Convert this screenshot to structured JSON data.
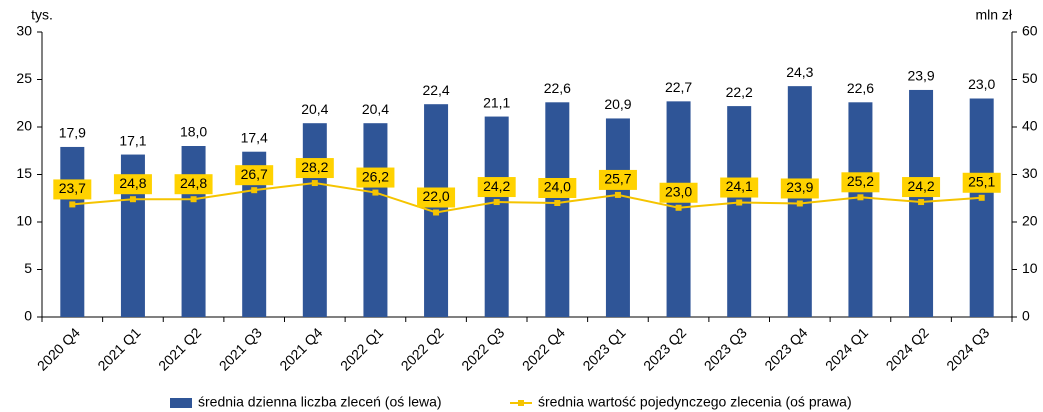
{
  "chart_data": {
    "type": "bar",
    "y_label": "tys.",
    "y2_label": "mln zł",
    "categories": [
      "2020 Q4",
      "2021 Q1",
      "2021 Q2",
      "2021 Q3",
      "2021 Q4",
      "2022 Q1",
      "2022 Q2",
      "2022 Q3",
      "2022 Q4",
      "2023 Q1",
      "2023 Q2",
      "2023 Q3",
      "2023 Q4",
      "2024 Q1",
      "2024 Q2",
      "2024 Q3"
    ],
    "series": [
      {
        "name": "średnia dzienna liczba zleceń (oś lewa)",
        "type": "bar",
        "color": "#2f5597",
        "values": [
          17.9,
          17.1,
          18.0,
          17.4,
          20.4,
          20.4,
          22.4,
          21.1,
          22.6,
          20.9,
          22.7,
          22.2,
          24.3,
          22.6,
          23.9,
          23.0
        ],
        "value_labels": [
          "17,9",
          "17,1",
          "18,0",
          "17,4",
          "20,4",
          "20,4",
          "22,4",
          "21,1",
          "22,6",
          "20,9",
          "22,7",
          "22,2",
          "24,3",
          "22,6",
          "23,9",
          "23,0"
        ]
      },
      {
        "name": "średnia wartość pojedynczego zlecenia (oś prawa)",
        "type": "line",
        "axis": "y2",
        "color": "#f5c400",
        "values": [
          23.7,
          24.8,
          24.8,
          26.7,
          28.2,
          26.2,
          22.0,
          24.2,
          24.0,
          25.7,
          23.0,
          24.1,
          23.9,
          25.2,
          24.2,
          25.1
        ],
        "value_labels": [
          "23,7",
          "24,8",
          "24,8",
          "26,7",
          "28,2",
          "26,2",
          "22,0",
          "24,2",
          "24,0",
          "25,7",
          "23,0",
          "24,1",
          "23,9",
          "25,2",
          "24,2",
          "25,1"
        ]
      }
    ],
    "ylim": [
      0,
      30
    ],
    "yticks": [
      0,
      5,
      10,
      15,
      20,
      25,
      30
    ],
    "y2lim": [
      0,
      60
    ],
    "y2ticks": [
      0,
      10,
      20,
      30,
      40,
      50,
      60
    ],
    "grid": false,
    "legend": "bottom"
  }
}
